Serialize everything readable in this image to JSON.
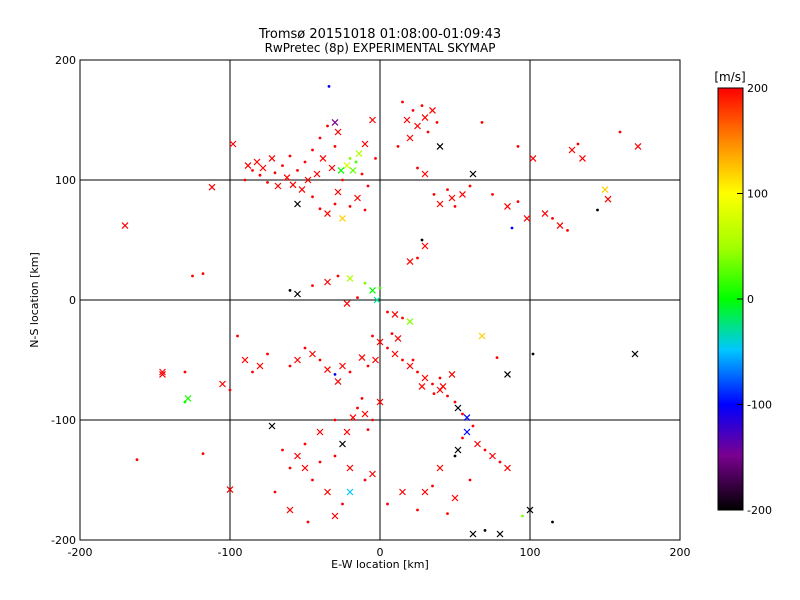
{
  "chart_data": {
    "type": "scatter",
    "title": "Tromsø 20151018 01:08:00-01:09:43",
    "subtitle": "RwPretec (8p) EXPERIMENTAL SKYMAP",
    "xlabel": "E-W location [km]",
    "ylabel": "N-S location [km]",
    "xlim": [
      -200,
      200
    ],
    "ylim": [
      -200,
      200
    ],
    "xticks": [
      "-200",
      "-100",
      "0",
      "100",
      "200"
    ],
    "yticks": [
      "-200",
      "-100",
      "0",
      "100",
      "200"
    ],
    "grid": true,
    "marker": "mixed crosses and dots",
    "colorbar": {
      "label": "[m/s]",
      "range": [
        -200,
        200
      ],
      "ticks": [
        "-200",
        "-100",
        "0",
        "100",
        "200"
      ],
      "colormap": "black-purple-blue-cyan-green-yellow-red",
      "placement": "right"
    },
    "points": [
      [
        -170,
        62,
        200
      ],
      [
        -162,
        -133,
        200
      ],
      [
        -145,
        -62,
        200
      ],
      [
        -130,
        -85,
        0
      ],
      [
        -128,
        -82,
        10
      ],
      [
        -118,
        22,
        200
      ],
      [
        -112,
        94,
        200
      ],
      [
        -100,
        -75,
        200
      ],
      [
        -98,
        130,
        200
      ],
      [
        -90,
        100,
        200
      ],
      [
        -88,
        112,
        200
      ],
      [
        -85,
        108,
        200
      ],
      [
        -82,
        115,
        200
      ],
      [
        -80,
        104,
        200
      ],
      [
        -78,
        110,
        200
      ],
      [
        -75,
        98,
        200
      ],
      [
        -72,
        118,
        200
      ],
      [
        -70,
        106,
        200
      ],
      [
        -68,
        95,
        200
      ],
      [
        -65,
        112,
        200
      ],
      [
        -62,
        102,
        200
      ],
      [
        -60,
        120,
        200
      ],
      [
        -58,
        96,
        200
      ],
      [
        -55,
        108,
        200
      ],
      [
        -52,
        92,
        200
      ],
      [
        -50,
        115,
        200
      ],
      [
        -48,
        100,
        200
      ],
      [
        -45,
        125,
        200
      ],
      [
        -42,
        105,
        200
      ],
      [
        -40,
        135,
        200
      ],
      [
        -38,
        118,
        200
      ],
      [
        -35,
        145,
        200
      ],
      [
        -32,
        110,
        200
      ],
      [
        -30,
        128,
        200
      ],
      [
        -28,
        140,
        200
      ],
      [
        -25,
        100,
        200
      ],
      [
        -22,
        112,
        80
      ],
      [
        -20,
        118,
        40
      ],
      [
        -18,
        108,
        30
      ],
      [
        -16,
        115,
        20
      ],
      [
        -14,
        122,
        60
      ],
      [
        -12,
        105,
        200
      ],
      [
        -10,
        130,
        200
      ],
      [
        -8,
        95,
        200
      ],
      [
        -5,
        150,
        200
      ],
      [
        -3,
        118,
        200
      ],
      [
        -30,
        148,
        -150
      ],
      [
        -34,
        178,
        -100
      ],
      [
        -26,
        108,
        0
      ],
      [
        -40,
        76,
        200
      ],
      [
        -35,
        72,
        200
      ],
      [
        -30,
        80,
        200
      ],
      [
        -25,
        68,
        120
      ],
      [
        -20,
        78,
        200
      ],
      [
        -15,
        85,
        200
      ],
      [
        -10,
        75,
        200
      ],
      [
        -28,
        90,
        200
      ],
      [
        -45,
        86,
        200
      ],
      [
        -55,
        80,
        -200
      ],
      [
        15,
        165,
        200
      ],
      [
        18,
        150,
        200
      ],
      [
        22,
        158,
        200
      ],
      [
        25,
        145,
        200
      ],
      [
        28,
        162,
        200
      ],
      [
        30,
        152,
        200
      ],
      [
        32,
        140,
        200
      ],
      [
        35,
        158,
        200
      ],
      [
        38,
        148,
        200
      ],
      [
        20,
        135,
        200
      ],
      [
        12,
        128,
        200
      ],
      [
        40,
        128,
        -200
      ],
      [
        25,
        110,
        200
      ],
      [
        30,
        105,
        200
      ],
      [
        45,
        92,
        200
      ],
      [
        48,
        85,
        200
      ],
      [
        50,
        78,
        200
      ],
      [
        55,
        88,
        200
      ],
      [
        60,
        95,
        200
      ],
      [
        40,
        80,
        200
      ],
      [
        36,
        88,
        200
      ],
      [
        62,
        105,
        -200
      ],
      [
        75,
        88,
        200
      ],
      [
        85,
        78,
        200
      ],
      [
        92,
        82,
        200
      ],
      [
        98,
        68,
        200
      ],
      [
        88,
        60,
        -100
      ],
      [
        110,
        72,
        200
      ],
      [
        115,
        68,
        200
      ],
      [
        120,
        62,
        200
      ],
      [
        125,
        58,
        200
      ],
      [
        128,
        125,
        200
      ],
      [
        132,
        130,
        200
      ],
      [
        135,
        118,
        200
      ],
      [
        145,
        75,
        -200
      ],
      [
        152,
        84,
        200
      ],
      [
        160,
        140,
        200
      ],
      [
        172,
        128,
        200
      ],
      [
        92,
        128,
        200
      ],
      [
        102,
        118,
        200
      ],
      [
        68,
        148,
        200
      ],
      [
        150,
        92,
        120
      ],
      [
        25,
        35,
        200
      ],
      [
        30,
        45,
        200
      ],
      [
        28,
        50,
        -200
      ],
      [
        20,
        32,
        200
      ],
      [
        -60,
        8,
        -200
      ],
      [
        -55,
        5,
        -200
      ],
      [
        -45,
        12,
        200
      ],
      [
        -35,
        15,
        200
      ],
      [
        -28,
        20,
        200
      ],
      [
        -20,
        18,
        60
      ],
      [
        -10,
        14,
        40
      ],
      [
        -5,
        8,
        0
      ],
      [
        0,
        10,
        20
      ],
      [
        -2,
        0,
        -30
      ],
      [
        -15,
        2,
        200
      ],
      [
        -22,
        -3,
        200
      ],
      [
        5,
        -10,
        200
      ],
      [
        10,
        -12,
        200
      ],
      [
        15,
        -15,
        200
      ],
      [
        20,
        -18,
        40
      ],
      [
        -5,
        -30,
        200
      ],
      [
        0,
        -35,
        200
      ],
      [
        5,
        -40,
        200
      ],
      [
        10,
        -45,
        200
      ],
      [
        15,
        -50,
        200
      ],
      [
        20,
        -55,
        200
      ],
      [
        25,
        -60,
        200
      ],
      [
        30,
        -65,
        200
      ],
      [
        35,
        -70,
        200
      ],
      [
        40,
        -75,
        200
      ],
      [
        45,
        -80,
        200
      ],
      [
        48,
        -62,
        200
      ],
      [
        50,
        -85,
        200
      ],
      [
        52,
        -90,
        -200
      ],
      [
        55,
        -95,
        200
      ],
      [
        58,
        -98,
        -100
      ],
      [
        40,
        -65,
        200
      ],
      [
        42,
        -72,
        200
      ],
      [
        36,
        -78,
        200
      ],
      [
        28,
        -72,
        200
      ],
      [
        22,
        -50,
        200
      ],
      [
        12,
        -32,
        200
      ],
      [
        8,
        -28,
        200
      ],
      [
        -3,
        -50,
        200
      ],
      [
        -8,
        -55,
        200
      ],
      [
        -12,
        -48,
        200
      ],
      [
        -20,
        -60,
        200
      ],
      [
        -25,
        -55,
        200
      ],
      [
        -30,
        -62,
        -100
      ],
      [
        -35,
        -58,
        200
      ],
      [
        -40,
        -50,
        200
      ],
      [
        -45,
        -45,
        200
      ],
      [
        -50,
        -40,
        200
      ],
      [
        -55,
        -50,
        200
      ],
      [
        -60,
        -55,
        200
      ],
      [
        -28,
        -68,
        200
      ],
      [
        -15,
        -90,
        200
      ],
      [
        -10,
        -95,
        200
      ],
      [
        -5,
        -100,
        200
      ],
      [
        0,
        -85,
        200
      ],
      [
        -12,
        -82,
        200
      ],
      [
        -18,
        -98,
        200
      ],
      [
        -8,
        -108,
        200
      ],
      [
        -22,
        -110,
        200
      ],
      [
        -30,
        -100,
        200
      ],
      [
        -40,
        -110,
        200
      ],
      [
        -50,
        -120,
        200
      ],
      [
        -55,
        -130,
        200
      ],
      [
        -60,
        -140,
        200
      ],
      [
        -50,
        -140,
        200
      ],
      [
        -45,
        -150,
        200
      ],
      [
        -35,
        -160,
        200
      ],
      [
        -40,
        -135,
        200
      ],
      [
        -25,
        -120,
        -200
      ],
      [
        -30,
        -130,
        200
      ],
      [
        -20,
        -140,
        200
      ],
      [
        -65,
        -125,
        200
      ],
      [
        -72,
        -105,
        -200
      ],
      [
        -70,
        -160,
        200
      ],
      [
        -60,
        -175,
        200
      ],
      [
        -48,
        -185,
        200
      ],
      [
        -30,
        -180,
        200
      ],
      [
        -25,
        -170,
        200
      ],
      [
        -20,
        -160,
        -50
      ],
      [
        -10,
        -150,
        200
      ],
      [
        -5,
        -145,
        200
      ],
      [
        5,
        -170,
        200
      ],
      [
        15,
        -160,
        200
      ],
      [
        25,
        -175,
        200
      ],
      [
        30,
        -160,
        200
      ],
      [
        35,
        -155,
        200
      ],
      [
        40,
        -140,
        200
      ],
      [
        50,
        -130,
        -200
      ],
      [
        52,
        -125,
        -200
      ],
      [
        55,
        -115,
        200
      ],
      [
        58,
        -110,
        -100
      ],
      [
        62,
        -105,
        200
      ],
      [
        65,
        -120,
        200
      ],
      [
        70,
        -125,
        200
      ],
      [
        75,
        -130,
        200
      ],
      [
        80,
        -135,
        200
      ],
      [
        85,
        -140,
        200
      ],
      [
        60,
        -150,
        200
      ],
      [
        50,
        -165,
        200
      ],
      [
        45,
        -178,
        200
      ],
      [
        62,
        -195,
        -200
      ],
      [
        70,
        -192,
        -200
      ],
      [
        80,
        -195,
        -200
      ],
      [
        95,
        -180,
        40
      ],
      [
        100,
        -175,
        -200
      ],
      [
        115,
        -185,
        -200
      ],
      [
        170,
        -45,
        -200
      ],
      [
        102,
        -45,
        -200
      ],
      [
        85,
        -62,
        -200
      ],
      [
        78,
        -48,
        200
      ],
      [
        68,
        -30,
        120
      ],
      [
        -75,
        -45,
        200
      ],
      [
        -80,
        -55,
        200
      ],
      [
        -85,
        -60,
        200
      ],
      [
        -90,
        -50,
        200
      ],
      [
        -95,
        -30,
        200
      ],
      [
        -100,
        -158,
        200
      ],
      [
        -130,
        -60,
        200
      ],
      [
        -105,
        -70,
        200
      ],
      [
        -118,
        -128,
        200
      ],
      [
        -145,
        -60,
        200
      ],
      [
        -125,
        20,
        200
      ]
    ]
  }
}
